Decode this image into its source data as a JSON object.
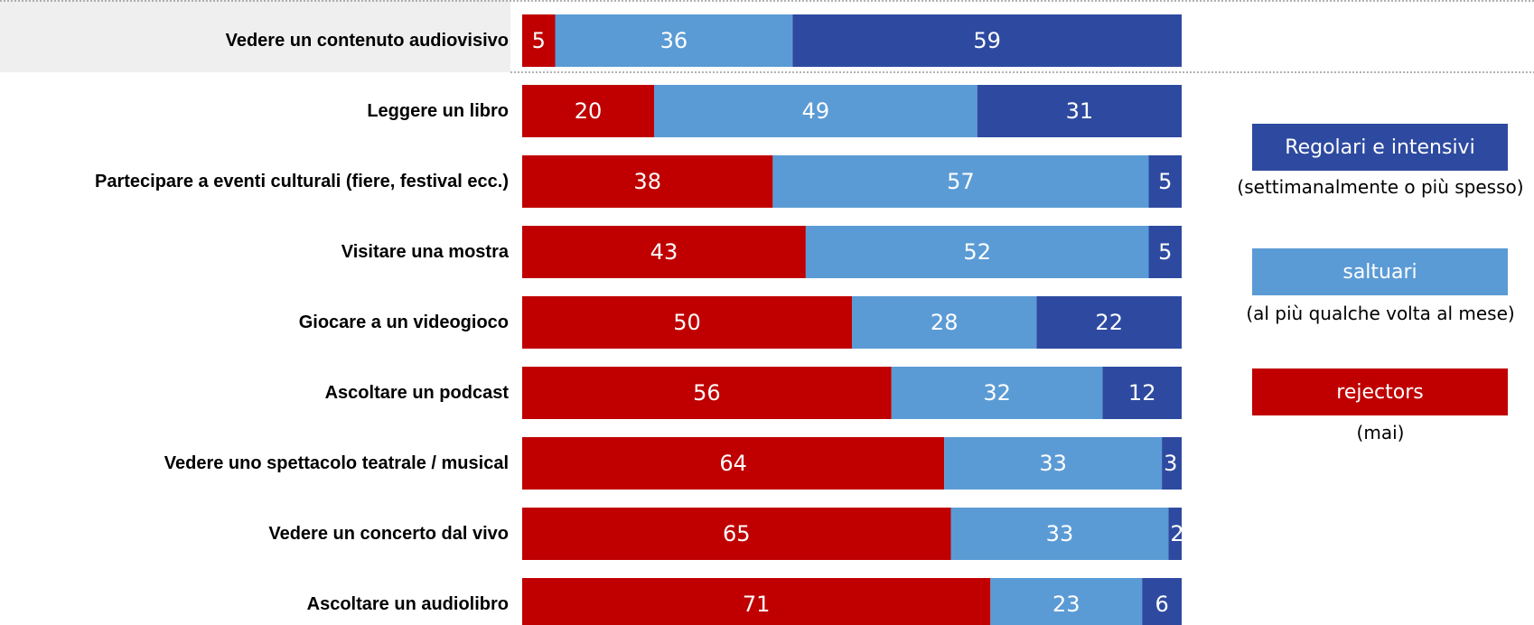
{
  "chart_data": {
    "type": "bar",
    "orientation": "horizontal",
    "stacked": true,
    "highlighted_category": "Vedere un contenuto audiovisivo",
    "categories": [
      "Vedere un contenuto audiovisivo",
      "Leggere un libro",
      "Partecipare a eventi culturali (fiere, festival ecc.)",
      "Visitare una mostra",
      "Giocare a un videogioco",
      "Ascoltare un podcast",
      "Vedere uno spettacolo teatrale / musical",
      "Vedere un concerto dal vivo",
      "Ascoltare un audiolibro"
    ],
    "series": [
      {
        "name": "rejectors",
        "color": "#c00000",
        "values": [
          5,
          20,
          38,
          43,
          50,
          56,
          64,
          65,
          71
        ]
      },
      {
        "name": "saltuari",
        "color": "#5b9bd5",
        "values": [
          36,
          49,
          57,
          52,
          28,
          32,
          33,
          33,
          23
        ]
      },
      {
        "name": "Regolari e intensivi",
        "color": "#2e4aa0",
        "values": [
          59,
          31,
          5,
          5,
          22,
          12,
          3,
          2,
          6
        ]
      }
    ],
    "xlim": [
      0,
      100
    ],
    "grid": false,
    "legend_position": "right"
  },
  "legend": [
    {
      "label": "Regolari e intensivi",
      "sublabel": "(settimanalmente o più spesso)",
      "color": "#2e4aa0"
    },
    {
      "label": "saltuari",
      "sublabel": "(al più qualche volta al mese)",
      "color": "#5b9bd5"
    },
    {
      "label": "rejectors",
      "sublabel": "(mai)",
      "color": "#c00000"
    }
  ]
}
